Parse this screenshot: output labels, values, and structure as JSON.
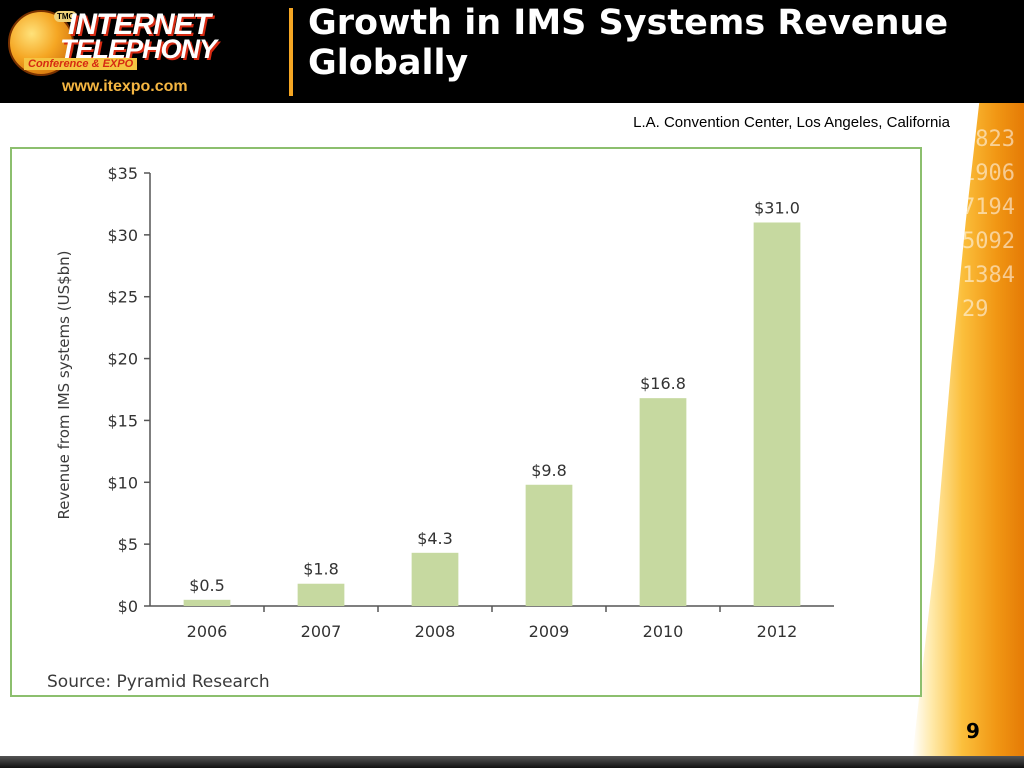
{
  "header": {
    "logo": {
      "tmc": "TMC",
      "line1": "INTERNET",
      "line2": "TELEPHONY",
      "tagline": "Conference & EXPO",
      "url": "www.itexpo.com"
    },
    "title": "Growth in IMS Systems Revenue Globally"
  },
  "venue": "L.A. Convention Center, Los Angeles, California",
  "source_note": "Source: Pyramid Research",
  "page_number": "9",
  "colors": {
    "bar": "#c6d9a0",
    "frame": "#8cbf6e",
    "accent": "#f5a623"
  },
  "chart_data": {
    "type": "bar",
    "categories": [
      "2006",
      "2007",
      "2008",
      "2009",
      "2010",
      "2012"
    ],
    "values": [
      0.5,
      1.8,
      4.3,
      9.8,
      16.8,
      31.0
    ],
    "data_labels": [
      "$0.5",
      "$1.8",
      "$4.3",
      "$9.8",
      "$16.8",
      "$31.0"
    ],
    "title": "",
    "xlabel": "",
    "ylabel": "Revenue from IMS systems (US$bn)",
    "ylim": [
      0,
      35
    ],
    "yticks": [
      0,
      5,
      10,
      15,
      20,
      25,
      30,
      35
    ],
    "ytick_labels": [
      "$0",
      "$5",
      "$10",
      "$15",
      "$20",
      "$25",
      "$30",
      "$35"
    ],
    "grid": false,
    "legend": "none"
  }
}
